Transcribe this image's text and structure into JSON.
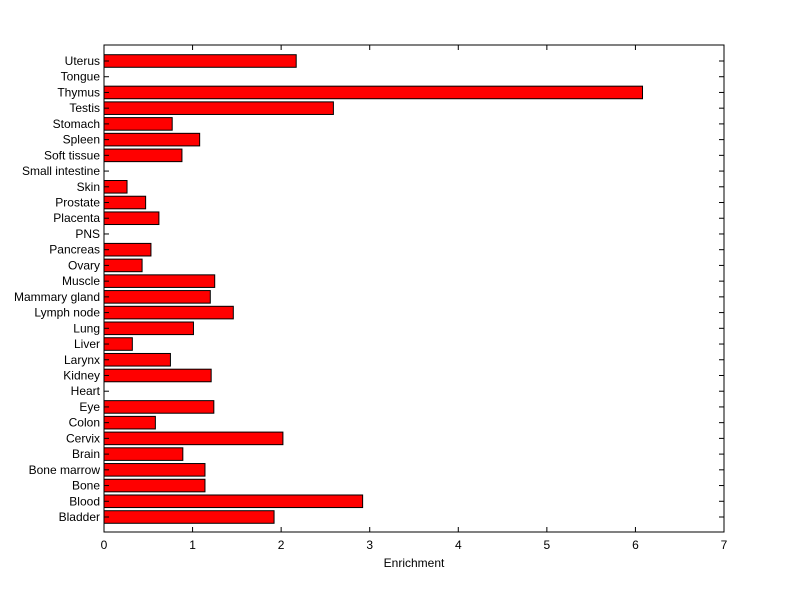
{
  "chart_data": {
    "type": "bar",
    "orientation": "horizontal",
    "xlabel": "Enrichment",
    "ylabel": "",
    "title": "",
    "xlim": [
      0,
      7
    ],
    "xticks": [
      "0",
      "1",
      "2",
      "3",
      "4",
      "5",
      "6",
      "7"
    ],
    "grid": false,
    "bar_color": "#ff0000",
    "bar_edge_color": "#000000",
    "categories": [
      "Uterus",
      "Tongue",
      "Thymus",
      "Testis",
      "Stomach",
      "Spleen",
      "Soft tissue",
      "Small intestine",
      "Skin",
      "Prostate",
      "Placenta",
      "PNS",
      "Pancreas",
      "Ovary",
      "Muscle",
      "Mammary gland",
      "Lymph node",
      "Lung",
      "Liver",
      "Larynx",
      "Kidney",
      "Heart",
      "Eye",
      "Colon",
      "Cervix",
      "Brain",
      "Bone marrow",
      "Bone",
      "Blood",
      "Bladder"
    ],
    "values": [
      2.17,
      0,
      6.08,
      2.59,
      0.77,
      1.08,
      0.88,
      0,
      0.26,
      0.47,
      0.62,
      0,
      0.53,
      0.43,
      1.25,
      1.2,
      1.46,
      1.01,
      0.32,
      0.75,
      1.21,
      0,
      1.24,
      0.58,
      2.02,
      0.89,
      1.14,
      1.14,
      2.92,
      1.92
    ]
  }
}
